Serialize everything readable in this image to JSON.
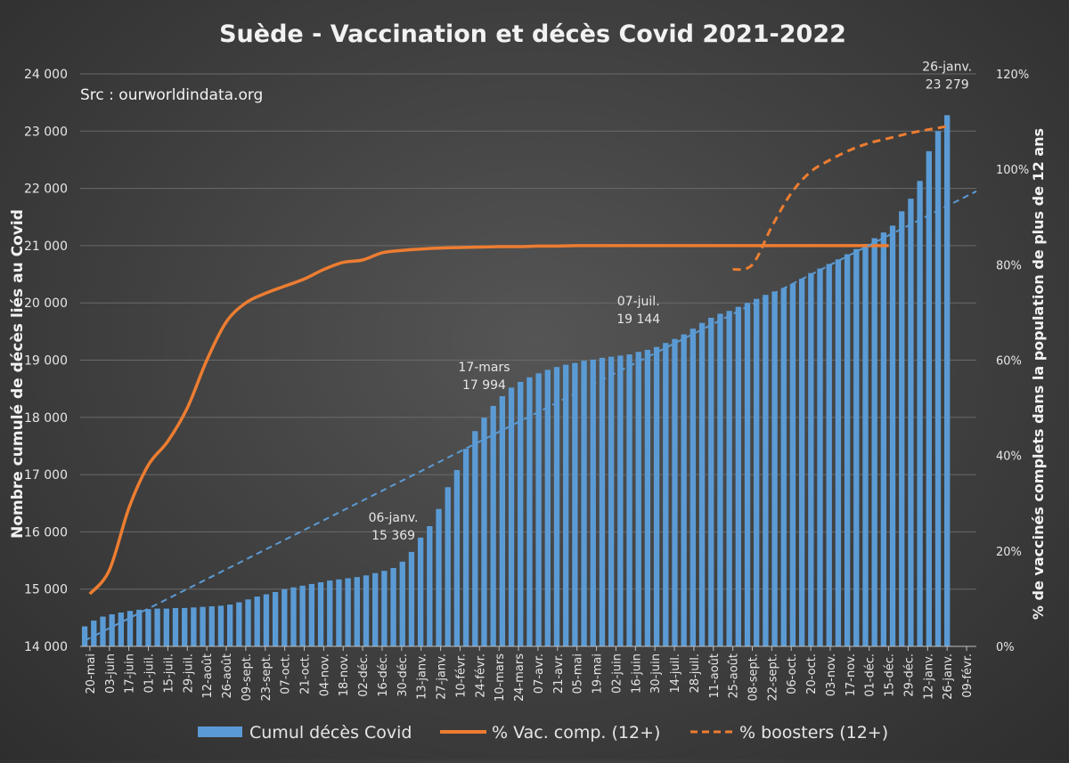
{
  "chart_data": {
    "type": "bar",
    "title": "Suède - Vaccination et décès Covid 2021-2022",
    "source_note": "Src : ourworldindata.org",
    "ylabel": "Nombre cumulé de décès liés au Covid",
    "y2label": "% de vaccinés complets dans  la population de plus de 12 ans",
    "ylim": [
      14000,
      24000
    ],
    "y_ticks": [
      "14 000",
      "15 000",
      "16 000",
      "17 000",
      "18 000",
      "19 000",
      "20 000",
      "21 000",
      "22 000",
      "23 000",
      "24 000"
    ],
    "y2lim": [
      0,
      120
    ],
    "y2_ticks": [
      "0%",
      "20%",
      "40%",
      "60%",
      "80%",
      "100%",
      "120%"
    ],
    "x_tick_labels": [
      "20-mai",
      "03-juin",
      "17-juin",
      "01-juil.",
      "15-juil.",
      "29-juil.",
      "12-août",
      "26-août",
      "09-sept.",
      "23-sept.",
      "07-oct.",
      "21-oct.",
      "04-nov.",
      "18-nov.",
      "02-déc.",
      "16-déc.",
      "30-déc.",
      "13-janv.",
      "27-janv.",
      "10-févr.",
      "24-févr.",
      "10-mars",
      "24-mars",
      "07-avr.",
      "21-avr.",
      "05-mai",
      "19-mai",
      "02-juin",
      "16-juin",
      "30-juin",
      "14-juil.",
      "28-juil.",
      "11-août",
      "25-août",
      "08-sept.",
      "22-sept.",
      "06-oct.",
      "20-oct.",
      "03-nov.",
      "17-nov.",
      "01-déc.",
      "15-déc.",
      "29-déc.",
      "12-janv.",
      "26-janv.",
      "09-févr."
    ],
    "series": [
      {
        "name": "Cumul décès Covid",
        "type": "bar",
        "color": "#5b9bd5",
        "values": [
          14350,
          14450,
          14520,
          14560,
          14590,
          14620,
          14640,
          14650,
          14660,
          14660,
          14670,
          14670,
          14680,
          14690,
          14700,
          14710,
          14730,
          14770,
          14820,
          14870,
          14910,
          14950,
          15000,
          15030,
          15060,
          15090,
          15120,
          15150,
          15170,
          15190,
          15210,
          15240,
          15280,
          15320,
          15369,
          15480,
          15650,
          15900,
          16100,
          16400,
          16780,
          17080,
          17450,
          17760,
          17994,
          18200,
          18370,
          18520,
          18620,
          18700,
          18770,
          18830,
          18880,
          18920,
          18950,
          18990,
          19010,
          19040,
          19060,
          19080,
          19100,
          19144,
          19180,
          19230,
          19300,
          19370,
          19450,
          19550,
          19650,
          19740,
          19810,
          19860,
          19930,
          20000,
          20070,
          20140,
          20200,
          20260,
          20330,
          20420,
          20520,
          20600,
          20680,
          20760,
          20850,
          20940,
          21030,
          21130,
          21230,
          21350,
          21600,
          21820,
          22130,
          22650,
          23000,
          23279
        ]
      },
      {
        "name": "% Vac. comp. (12+)",
        "type": "line",
        "color": "#ed7d31",
        "unit": "%",
        "x": [
          "20-mai",
          "03-juin",
          "17-juin",
          "01-juil.",
          "15-juil.",
          "29-juil.",
          "12-août",
          "26-août",
          "09-sept.",
          "23-sept.",
          "07-oct.",
          "21-oct.",
          "04-nov.",
          "18-nov.",
          "02-déc.",
          "16-déc.",
          "30-déc.",
          "13-janv.",
          "27-janv.",
          "10-févr.",
          "24-févr.",
          "10-mars",
          "24-mars",
          "07-avr.",
          "21-avr.",
          "05-mai",
          "19-mai",
          "02-juin",
          "16-juin",
          "30-juin",
          "14-juil.",
          "28-juil.",
          "11-août",
          "25-août",
          "08-sept.",
          "22-sept.",
          "06-oct.",
          "20-oct.",
          "03-nov.",
          "17-nov.",
          "01-déc.",
          "15-déc."
        ],
        "values": [
          11,
          16,
          29,
          38,
          43,
          50,
          60,
          68,
          72,
          74,
          75.5,
          77,
          79,
          80.5,
          81,
          82.5,
          83,
          83.3,
          83.5,
          83.6,
          83.7,
          83.8,
          83.8,
          83.9,
          83.9,
          84,
          84,
          84,
          84,
          84,
          84,
          84,
          84,
          84,
          84,
          84,
          84,
          84,
          84,
          84,
          84,
          84
        ]
      },
      {
        "name": "% boosters (12+)",
        "type": "line-dashed",
        "color": "#ed7d31",
        "unit": "%",
        "x": [
          "25-août",
          "08-sept.",
          "22-sept.",
          "06-oct.",
          "20-oct.",
          "03-nov.",
          "17-nov.",
          "01-déc.",
          "15-déc.",
          "29-déc.",
          "12-janv.",
          "26-janv."
        ],
        "values": [
          79,
          80,
          88,
          95,
          99.5,
          102,
          104,
          105.5,
          106.5,
          107.5,
          108.3,
          109
        ]
      },
      {
        "name": "Linear trend (Cumul décès Covid)",
        "type": "trendline",
        "color": "#5b9bd5",
        "y_start": 14100,
        "y_end": 21950
      }
    ],
    "annotations": [
      {
        "x": "06-janv.",
        "date": "06-janv.",
        "value": "15 369"
      },
      {
        "x": "17-mars",
        "date": "17-mars",
        "value": "17 994"
      },
      {
        "x": "07-juil.",
        "date": "07-juil.",
        "value": "19 144"
      },
      {
        "x": "26-janv.",
        "date": "26-janv.",
        "value": "23 279"
      }
    ],
    "legend": {
      "position": "bottom",
      "items": [
        "Cumul décès Covid",
        "% Vac. comp. (12+)",
        "% boosters (12+)"
      ]
    },
    "grid": true
  }
}
